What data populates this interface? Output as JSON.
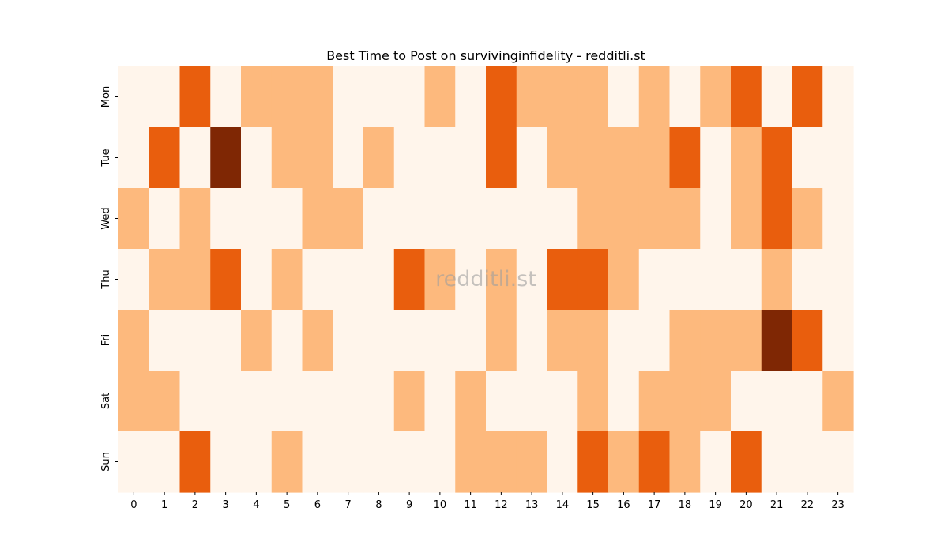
{
  "chart_data": {
    "type": "heatmap",
    "title": "Best Time to Post on survivinginfidelity - redditli.st",
    "watermark": "redditli.st",
    "xlabel": "",
    "ylabel": "",
    "x_categories": [
      "0",
      "1",
      "2",
      "3",
      "4",
      "5",
      "6",
      "7",
      "8",
      "9",
      "10",
      "11",
      "12",
      "13",
      "14",
      "15",
      "16",
      "17",
      "18",
      "19",
      "20",
      "21",
      "22",
      "23"
    ],
    "y_categories": [
      "Mon",
      "Tue",
      "Wed",
      "Thu",
      "Fri",
      "Sat",
      "Sun"
    ],
    "value_scale": "relative intensity level 0-3",
    "colors": [
      "#fff5eb",
      "#fdb97d",
      "#e95e0d",
      "#7f2704"
    ],
    "colormap": "Oranges",
    "grid": false,
    "values": [
      [
        0,
        0,
        2,
        0,
        1,
        1,
        1,
        0,
        0,
        0,
        1,
        0,
        2,
        1,
        1,
        1,
        0,
        1,
        0,
        1,
        2,
        0,
        2,
        0
      ],
      [
        0,
        2,
        0,
        3,
        0,
        1,
        1,
        0,
        1,
        0,
        0,
        0,
        2,
        0,
        1,
        1,
        1,
        1,
        2,
        0,
        1,
        2,
        0,
        0
      ],
      [
        1,
        0,
        1,
        0,
        0,
        0,
        1,
        1,
        0,
        0,
        0,
        0,
        0,
        0,
        0,
        1,
        1,
        1,
        1,
        0,
        1,
        2,
        1,
        0
      ],
      [
        0,
        1,
        1,
        2,
        0,
        1,
        0,
        0,
        0,
        2,
        1,
        0,
        1,
        0,
        2,
        2,
        1,
        0,
        0,
        0,
        0,
        1,
        0,
        0
      ],
      [
        1,
        0,
        0,
        0,
        1,
        0,
        1,
        0,
        0,
        0,
        0,
        0,
        1,
        0,
        1,
        1,
        0,
        0,
        1,
        1,
        1,
        3,
        2,
        0
      ],
      [
        1,
        1,
        0,
        0,
        0,
        0,
        0,
        0,
        0,
        1,
        0,
        1,
        0,
        0,
        0,
        1,
        0,
        1,
        1,
        1,
        0,
        0,
        0,
        1
      ],
      [
        0,
        0,
        2,
        0,
        0,
        1,
        0,
        0,
        0,
        0,
        0,
        1,
        1,
        1,
        0,
        2,
        1,
        2,
        1,
        0,
        2,
        0,
        0,
        0
      ]
    ]
  }
}
